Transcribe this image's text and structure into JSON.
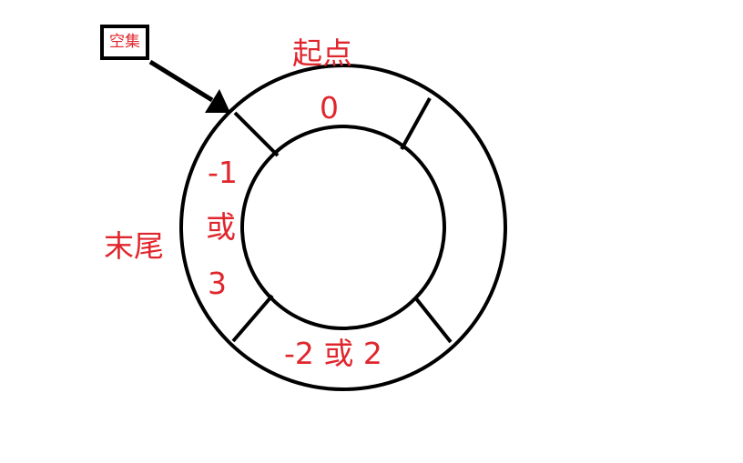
{
  "empty_set_label": "空集",
  "start_title": "起点",
  "start_index": "0",
  "end_title": "末尾",
  "end_index_line1": "-1",
  "end_index_line2": "或",
  "end_index_line3": "3",
  "bottom_index": "-2 或 2",
  "colors": {
    "label": "#e0262d",
    "line": "#000000",
    "background": "#ffffff"
  }
}
